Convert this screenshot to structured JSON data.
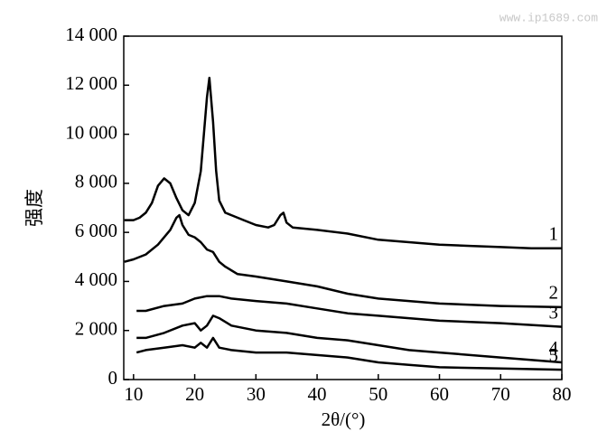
{
  "chart_data": {
    "type": "line",
    "watermark": "www.ip1689.com",
    "x_label": "2θ/(°)",
    "y_label": "强度",
    "xlim": [
      8.4,
      80
    ],
    "xticks": [
      10,
      20,
      30,
      40,
      50,
      60,
      70,
      80
    ],
    "ylim": [
      0,
      14000
    ],
    "yticks": [
      0,
      {
        "value": 2000,
        "label": "2 000"
      },
      {
        "value": 4000,
        "label": "4 000"
      },
      {
        "value": 6000,
        "label": "6 000"
      },
      {
        "value": 8000,
        "label": "8 000"
      },
      {
        "value": 10000,
        "label": "10 000"
      },
      {
        "value": 12000,
        "label": "12 000"
      },
      {
        "value": 14000,
        "label": "14 000"
      }
    ],
    "series": [
      {
        "name": "1",
        "color": "#000000",
        "x": [
          8.5,
          10,
          11,
          12,
          13,
          14,
          15,
          16,
          17,
          18,
          19,
          20,
          21,
          21.5,
          22,
          22.4,
          23,
          23.5,
          24,
          25,
          26,
          28,
          30,
          32,
          33,
          34,
          34.5,
          35,
          36,
          40,
          45,
          50,
          55,
          60,
          65,
          70,
          75,
          80
        ],
        "values": [
          6500,
          6500,
          6600,
          6800,
          7200,
          7900,
          8200,
          8000,
          7400,
          6900,
          6700,
          7200,
          8500,
          10000,
          11500,
          12300,
          10500,
          8500,
          7300,
          6800,
          6700,
          6500,
          6300,
          6200,
          6300,
          6700,
          6800,
          6400,
          6200,
          6100,
          5950,
          5700,
          5600,
          5500,
          5450,
          5400,
          5350,
          5350
        ]
      },
      {
        "name": "2",
        "color": "#000000",
        "x": [
          8.5,
          10,
          12,
          14,
          15,
          16,
          17,
          17.5,
          18,
          19,
          20,
          21,
          22,
          23,
          24,
          25,
          27,
          30,
          35,
          40,
          45,
          50,
          55,
          60,
          70,
          80
        ],
        "values": [
          4800,
          4900,
          5100,
          5500,
          5800,
          6100,
          6600,
          6700,
          6300,
          5900,
          5800,
          5600,
          5300,
          5200,
          4800,
          4600,
          4300,
          4200,
          4000,
          3800,
          3500,
          3300,
          3200,
          3100,
          3000,
          2950
        ]
      },
      {
        "name": "3",
        "color": "#000000",
        "x": [
          10.5,
          12,
          15,
          18,
          20,
          22,
          24,
          26,
          30,
          35,
          40,
          45,
          50,
          55,
          60,
          70,
          80
        ],
        "values": [
          2800,
          2800,
          3000,
          3100,
          3300,
          3400,
          3400,
          3300,
          3200,
          3100,
          2900,
          2700,
          2600,
          2500,
          2400,
          2300,
          2150
        ]
      },
      {
        "name": "4",
        "color": "#000000",
        "x": [
          10.5,
          12,
          15,
          18,
          20,
          21,
          22,
          23,
          24,
          26,
          30,
          35,
          40,
          45,
          50,
          55,
          60,
          70,
          80
        ],
        "values": [
          1700,
          1700,
          1900,
          2200,
          2300,
          2000,
          2200,
          2600,
          2500,
          2200,
          2000,
          1900,
          1700,
          1600,
          1400,
          1200,
          1100,
          900,
          700
        ]
      },
      {
        "name": "5",
        "color": "#000000",
        "x": [
          10.5,
          12,
          15,
          18,
          20,
          21,
          22,
          23,
          24,
          26,
          30,
          35,
          40,
          45,
          50,
          55,
          60,
          70,
          80
        ],
        "values": [
          1100,
          1200,
          1300,
          1400,
          1300,
          1500,
          1300,
          1700,
          1300,
          1200,
          1100,
          1100,
          1000,
          900,
          700,
          600,
          500,
          450,
          400
        ]
      }
    ]
  }
}
